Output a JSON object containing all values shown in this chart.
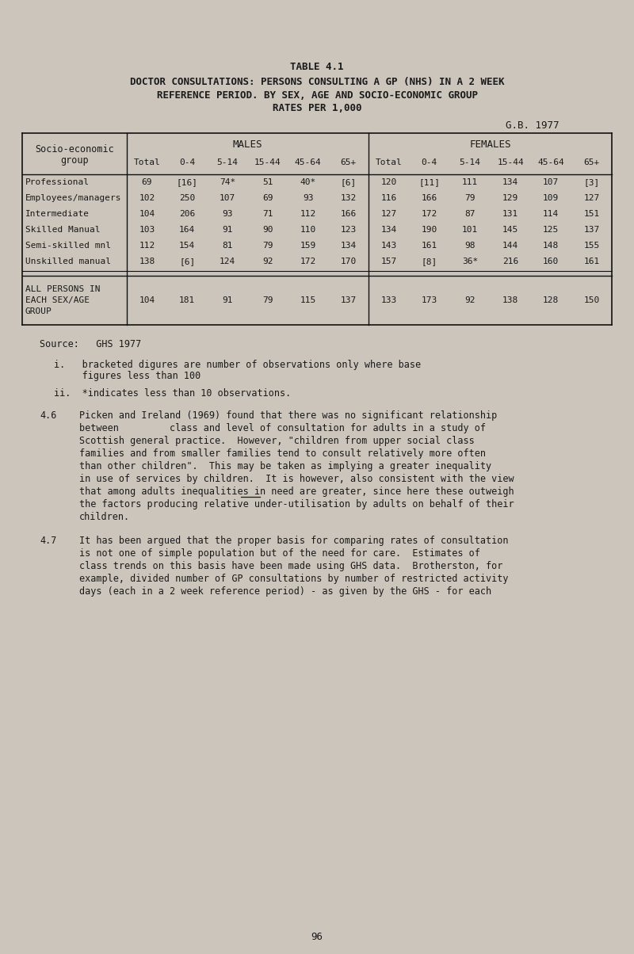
{
  "bg_color": "#cbc5bc",
  "title_line1": "TABLE 4.1",
  "title_line2": "DOCTOR CONSULTATIONS: PERSONS CONSULTING A GP (NHS) IN A 2 WEEK",
  "title_line3": "REFERENCE PERIOD. BY SEX, AGE AND SOCIO-ECONOMIC GROUP",
  "title_line4": "RATES PER 1,000",
  "year_label": "G.B. 1977",
  "age_cols": [
    "Total",
    "0-4",
    "5-14",
    "15-44",
    "45-64",
    "65+"
  ],
  "rows": [
    {
      "group": "Professional",
      "males": [
        "69",
        "[16]",
        "74*",
        "51",
        "40*",
        "[6]"
      ],
      "females": [
        "120",
        "[11]",
        "111",
        "134",
        "107",
        "[3]"
      ]
    },
    {
      "group": "Employees/managers",
      "males": [
        "102",
        "250",
        "107",
        "69",
        "93",
        "132"
      ],
      "females": [
        "116",
        "166",
        "79",
        "129",
        "109",
        "127"
      ]
    },
    {
      "group": "Intermediate",
      "males": [
        "104",
        "206",
        "93",
        "71",
        "112",
        "166"
      ],
      "females": [
        "127",
        "172",
        "87",
        "131",
        "114",
        "151"
      ]
    },
    {
      "group": "Skilled Manual",
      "males": [
        "103",
        "164",
        "91",
        "90",
        "110",
        "123"
      ],
      "females": [
        "134",
        "190",
        "101",
        "145",
        "125",
        "137"
      ]
    },
    {
      "group": "Semi-skilled mnl",
      "males": [
        "112",
        "154",
        "81",
        "79",
        "159",
        "134"
      ],
      "females": [
        "143",
        "161",
        "98",
        "144",
        "148",
        "155"
      ]
    },
    {
      "group": "Unskilled manual",
      "males": [
        "138",
        "[6]",
        "124",
        "92",
        "172",
        "170"
      ],
      "females": [
        "157",
        "[8]",
        "36*",
        "216",
        "160",
        "161"
      ]
    }
  ],
  "all_row": {
    "group_lines": [
      "ALL PERSONS IN",
      "EACH SEX/AGE",
      "GROUP"
    ],
    "males": [
      "104",
      "181",
      "91",
      "79",
      "115",
      "137"
    ],
    "females": [
      "133",
      "173",
      "92",
      "138",
      "128",
      "150"
    ]
  },
  "source_text": "Source:   GHS 1977",
  "note_i_line1": "i.   bracketed digures are number of observations only where base",
  "note_i_line2": "     figures less than 100",
  "note_ii": "ii.  *indicates less than 10 observations.",
  "para46_num": "4.6",
  "para46_lines": [
    "Picken and Ireland (1969) found that there was no significant relationship",
    "between         class and level of consultation for adults in a study of",
    "Scottish general practice.  However, \"children from upper social class",
    "families and from smaller families tend to consult relatively more often",
    "than other children\".  This may be taken as implying a greater inequality",
    "in use of services by children.  It is however, also consistent with the view",
    "that among adults inequalities in need are greater, since here these outweigh",
    "the factors producing relative under-utilisation by adults on behalf of their",
    "children."
  ],
  "para47_num": "4.7",
  "para47_lines": [
    "It has been argued that the proper basis for comparing rates of consultation",
    "is not one of simple population but of the need for care.  Estimates of",
    "class trends on this basis have been made using GHS data.  Brotherston, for",
    "example, divided number of GP consultations by number of restricted activity",
    "days (each in a 2 week reference period) - as given by the GHS - for each"
  ],
  "page_num": "96",
  "text_color": "#1a1a1a",
  "table_line_color": "#111111",
  "font_size_title": 9.0,
  "font_size_header": 8.5,
  "font_size_data": 8.0,
  "font_size_body": 8.5,
  "font_size_page": 9.0
}
